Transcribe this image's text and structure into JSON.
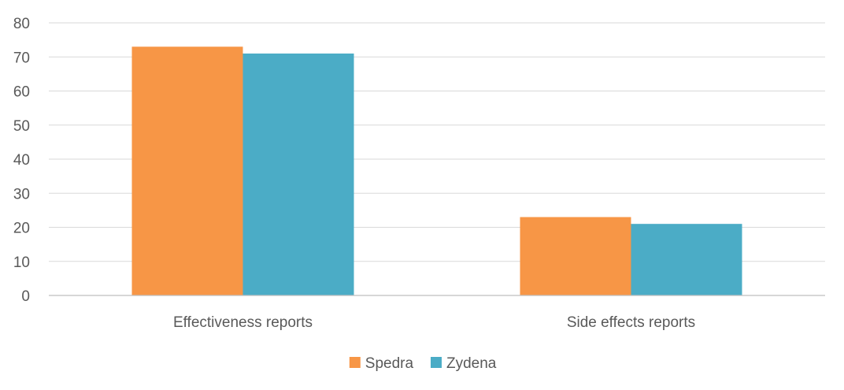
{
  "chart_data": {
    "type": "bar",
    "title": "",
    "xlabel": "",
    "ylabel": "",
    "categories": [
      "Effectiveness reports",
      "Side effects reports"
    ],
    "series": [
      {
        "name": "Spedra",
        "color": "#F79646",
        "values": [
          73,
          23
        ]
      },
      {
        "name": "Zydena",
        "color": "#4BACC6",
        "values": [
          71,
          21
        ]
      }
    ],
    "ylim": [
      0,
      80
    ],
    "yticks": [
      0,
      10,
      20,
      30,
      40,
      50,
      60,
      70,
      80
    ],
    "grid": true,
    "legend_position": "bottom"
  }
}
